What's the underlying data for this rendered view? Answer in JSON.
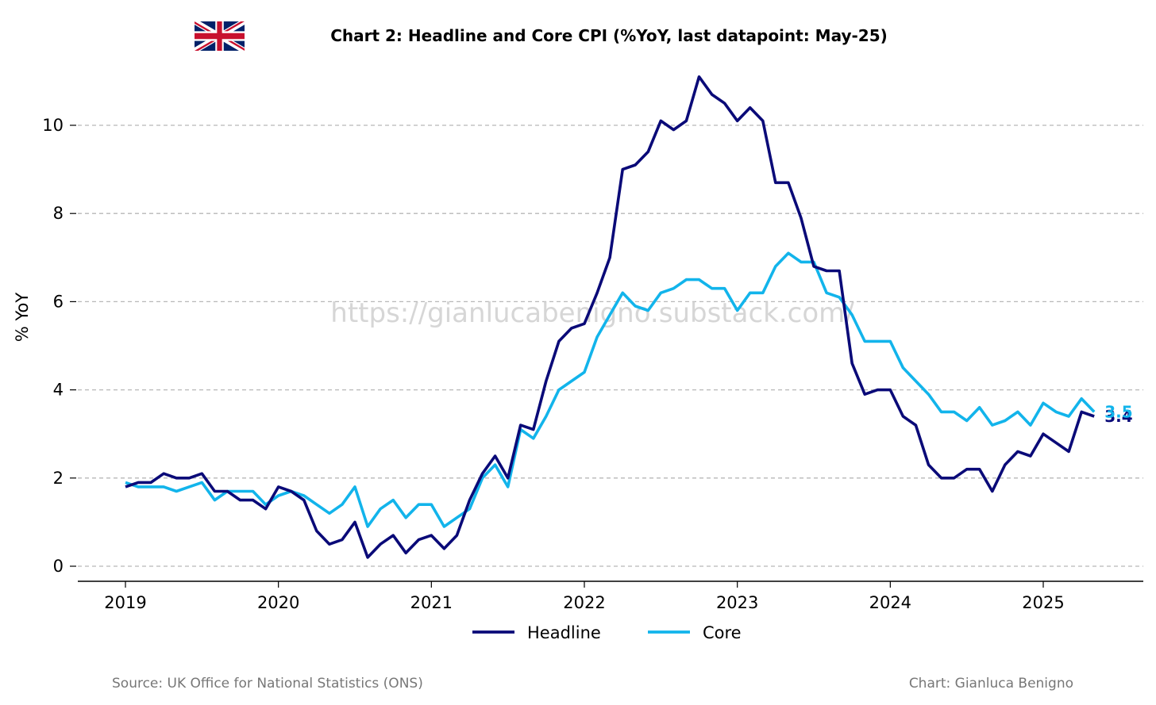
{
  "title": "Chart 2: Headline and Core CPI (%YoY, last datapoint: May-25)",
  "watermark": "https://gianlucabenigno.substack.com/",
  "footer": {
    "source": "Source: UK Office for National Statistics (ONS)",
    "credit": "Chart: Gianluca Benigno"
  },
  "flag_icon": "uk-flag-icon",
  "chart_data": {
    "type": "line",
    "title": "Chart 2: Headline and Core CPI (%YoY, last datapoint: May-25)",
    "xlabel": "",
    "ylabel": "% YoY",
    "x_start": "2019-01",
    "x_ticks": [
      "2019",
      "2020",
      "2021",
      "2022",
      "2023",
      "2024",
      "2025"
    ],
    "y_ticks": [
      "0",
      "2",
      "4",
      "6",
      "8",
      "10"
    ],
    "xlim": [
      "2018-09",
      "2025-11"
    ],
    "ylim": [
      -0.3,
      11.3
    ],
    "grid": "y-dashed",
    "legend": "bottom-center",
    "series": [
      {
        "name": "Headline",
        "color": "#0a0a78",
        "end_label": "3.4",
        "values": [
          1.8,
          1.9,
          1.9,
          2.1,
          2.0,
          2.0,
          2.1,
          1.7,
          1.7,
          1.5,
          1.5,
          1.3,
          1.8,
          1.7,
          1.5,
          0.8,
          0.5,
          0.6,
          1.0,
          0.2,
          0.5,
          0.7,
          0.3,
          0.6,
          0.7,
          0.4,
          0.7,
          1.5,
          2.1,
          2.5,
          2.0,
          3.2,
          3.1,
          4.2,
          5.1,
          5.4,
          5.5,
          6.2,
          7.0,
          9.0,
          9.1,
          9.4,
          10.1,
          9.9,
          10.1,
          11.1,
          10.7,
          10.5,
          10.1,
          10.4,
          10.1,
          8.7,
          8.7,
          7.9,
          6.8,
          6.7,
          6.7,
          4.6,
          3.9,
          4.0,
          4.0,
          3.4,
          3.2,
          2.3,
          2.0,
          2.0,
          2.2,
          2.2,
          1.7,
          2.3,
          2.6,
          2.5,
          3.0,
          2.8,
          2.6,
          3.5,
          3.4
        ]
      },
      {
        "name": "Core",
        "color": "#12b4eb",
        "end_label": "3.5",
        "values": [
          1.9,
          1.8,
          1.8,
          1.8,
          1.7,
          1.8,
          1.9,
          1.5,
          1.7,
          1.7,
          1.7,
          1.4,
          1.6,
          1.7,
          1.6,
          1.4,
          1.2,
          1.4,
          1.8,
          0.9,
          1.3,
          1.5,
          1.1,
          1.4,
          1.4,
          0.9,
          1.1,
          1.3,
          2.0,
          2.3,
          1.8,
          3.1,
          2.9,
          3.4,
          4.0,
          4.2,
          4.4,
          5.2,
          5.7,
          6.2,
          5.9,
          5.8,
          6.2,
          6.3,
          6.5,
          6.5,
          6.3,
          6.3,
          5.8,
          6.2,
          6.2,
          6.8,
          7.1,
          6.9,
          6.9,
          6.2,
          6.1,
          5.7,
          5.1,
          5.1,
          5.1,
          4.5,
          4.2,
          3.9,
          3.5,
          3.5,
          3.3,
          3.6,
          3.2,
          3.3,
          3.5,
          3.2,
          3.7,
          3.5,
          3.4,
          3.8,
          3.5
        ]
      }
    ]
  }
}
